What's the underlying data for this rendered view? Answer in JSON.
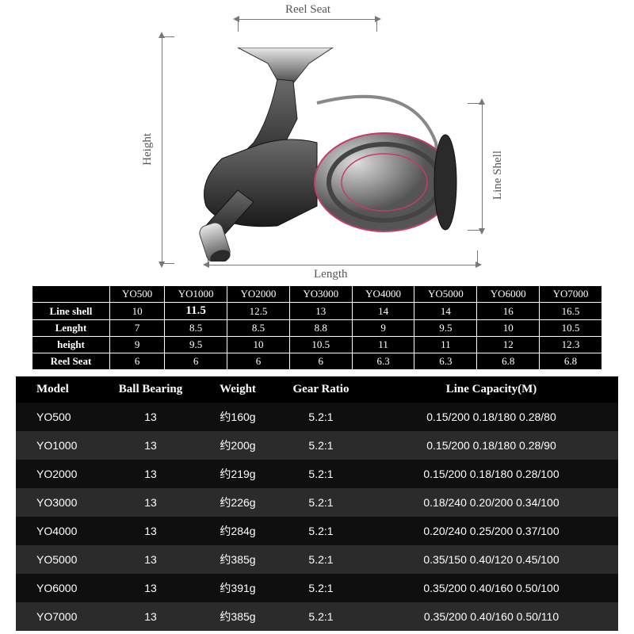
{
  "diagram": {
    "labels": {
      "reel_seat": "Reel Seat",
      "height": "Height",
      "line_shell": "Line Shell",
      "length": "Length"
    },
    "guide_color": "#777777",
    "label_color": "#555555"
  },
  "table1": {
    "models": [
      "YO500",
      "YO1000",
      "YO2000",
      "YO3000",
      "YO4000",
      "YO5000",
      "YO6000",
      "YO7000"
    ],
    "rows": [
      {
        "label": "Line shell",
        "vals": [
          "10",
          "11.5",
          "12.5",
          "13",
          "14",
          "14",
          "16",
          "16.5"
        ],
        "bold_idx": 1
      },
      {
        "label": "Lenght",
        "vals": [
          "7",
          "8.5",
          "8.5",
          "8.8",
          "9",
          "9.5",
          "10",
          "10.5"
        ]
      },
      {
        "label": "height",
        "vals": [
          "9",
          "9.5",
          "10",
          "10.5",
          "11",
          "11",
          "12",
          "12.3"
        ]
      },
      {
        "label": "Reel Seat",
        "vals": [
          "6",
          "6",
          "6",
          "6",
          "6.3",
          "6.3",
          "6.8",
          "6.8"
        ]
      }
    ],
    "bg": "#000000",
    "fg": "#ffffff",
    "border": "#ffffff",
    "font_size": 13
  },
  "table2": {
    "headers": [
      "Model",
      "Ball Bearing",
      "Weight",
      "Gear Ratio",
      "Line Capacity(M)"
    ],
    "rows": [
      {
        "m": "YO500",
        "bb": "13",
        "w": "约160g",
        "gr": "5.2:1",
        "lc": "0.15/200 0.18/180 0.28/80"
      },
      {
        "m": "YO1000",
        "bb": "13",
        "w": "约200g",
        "gr": "5.2:1",
        "lc": "0.15/200 0.18/180 0.28/90"
      },
      {
        "m": "YO2000",
        "bb": "13",
        "w": "约219g",
        "gr": "5.2:1",
        "lc": "0.15/200 0.18/180 0.28/100"
      },
      {
        "m": "YO3000",
        "bb": "13",
        "w": "约226g",
        "gr": "5.2:1",
        "lc": "0.18/240 0.20/200 0.34/100"
      },
      {
        "m": "YO4000",
        "bb": "13",
        "w": "约284g",
        "gr": "5.2:1",
        "lc": "0.20/240 0.25/200 0.37/100"
      },
      {
        "m": "YO5000",
        "bb": "13",
        "w": "约385g",
        "gr": "5.2:1",
        "lc": "0.35/150 0.40/120 0.45/100"
      },
      {
        "m": "YO6000",
        "bb": "13",
        "w": "约391g",
        "gr": "5.2:1",
        "lc": "0.35/200 0.40/160 0.50/100"
      },
      {
        "m": "YO7000",
        "bb": "13",
        "w": "约385g",
        "gr": "5.2:1",
        "lc": "0.35/200 0.40/160 0.50/110"
      }
    ],
    "header_bg": "#000000",
    "row_dark": "#0f0f0f",
    "row_light": "#2b2b2b",
    "fg": "#ffffff",
    "header_fontsize": 15,
    "cell_fontsize": 14
  }
}
